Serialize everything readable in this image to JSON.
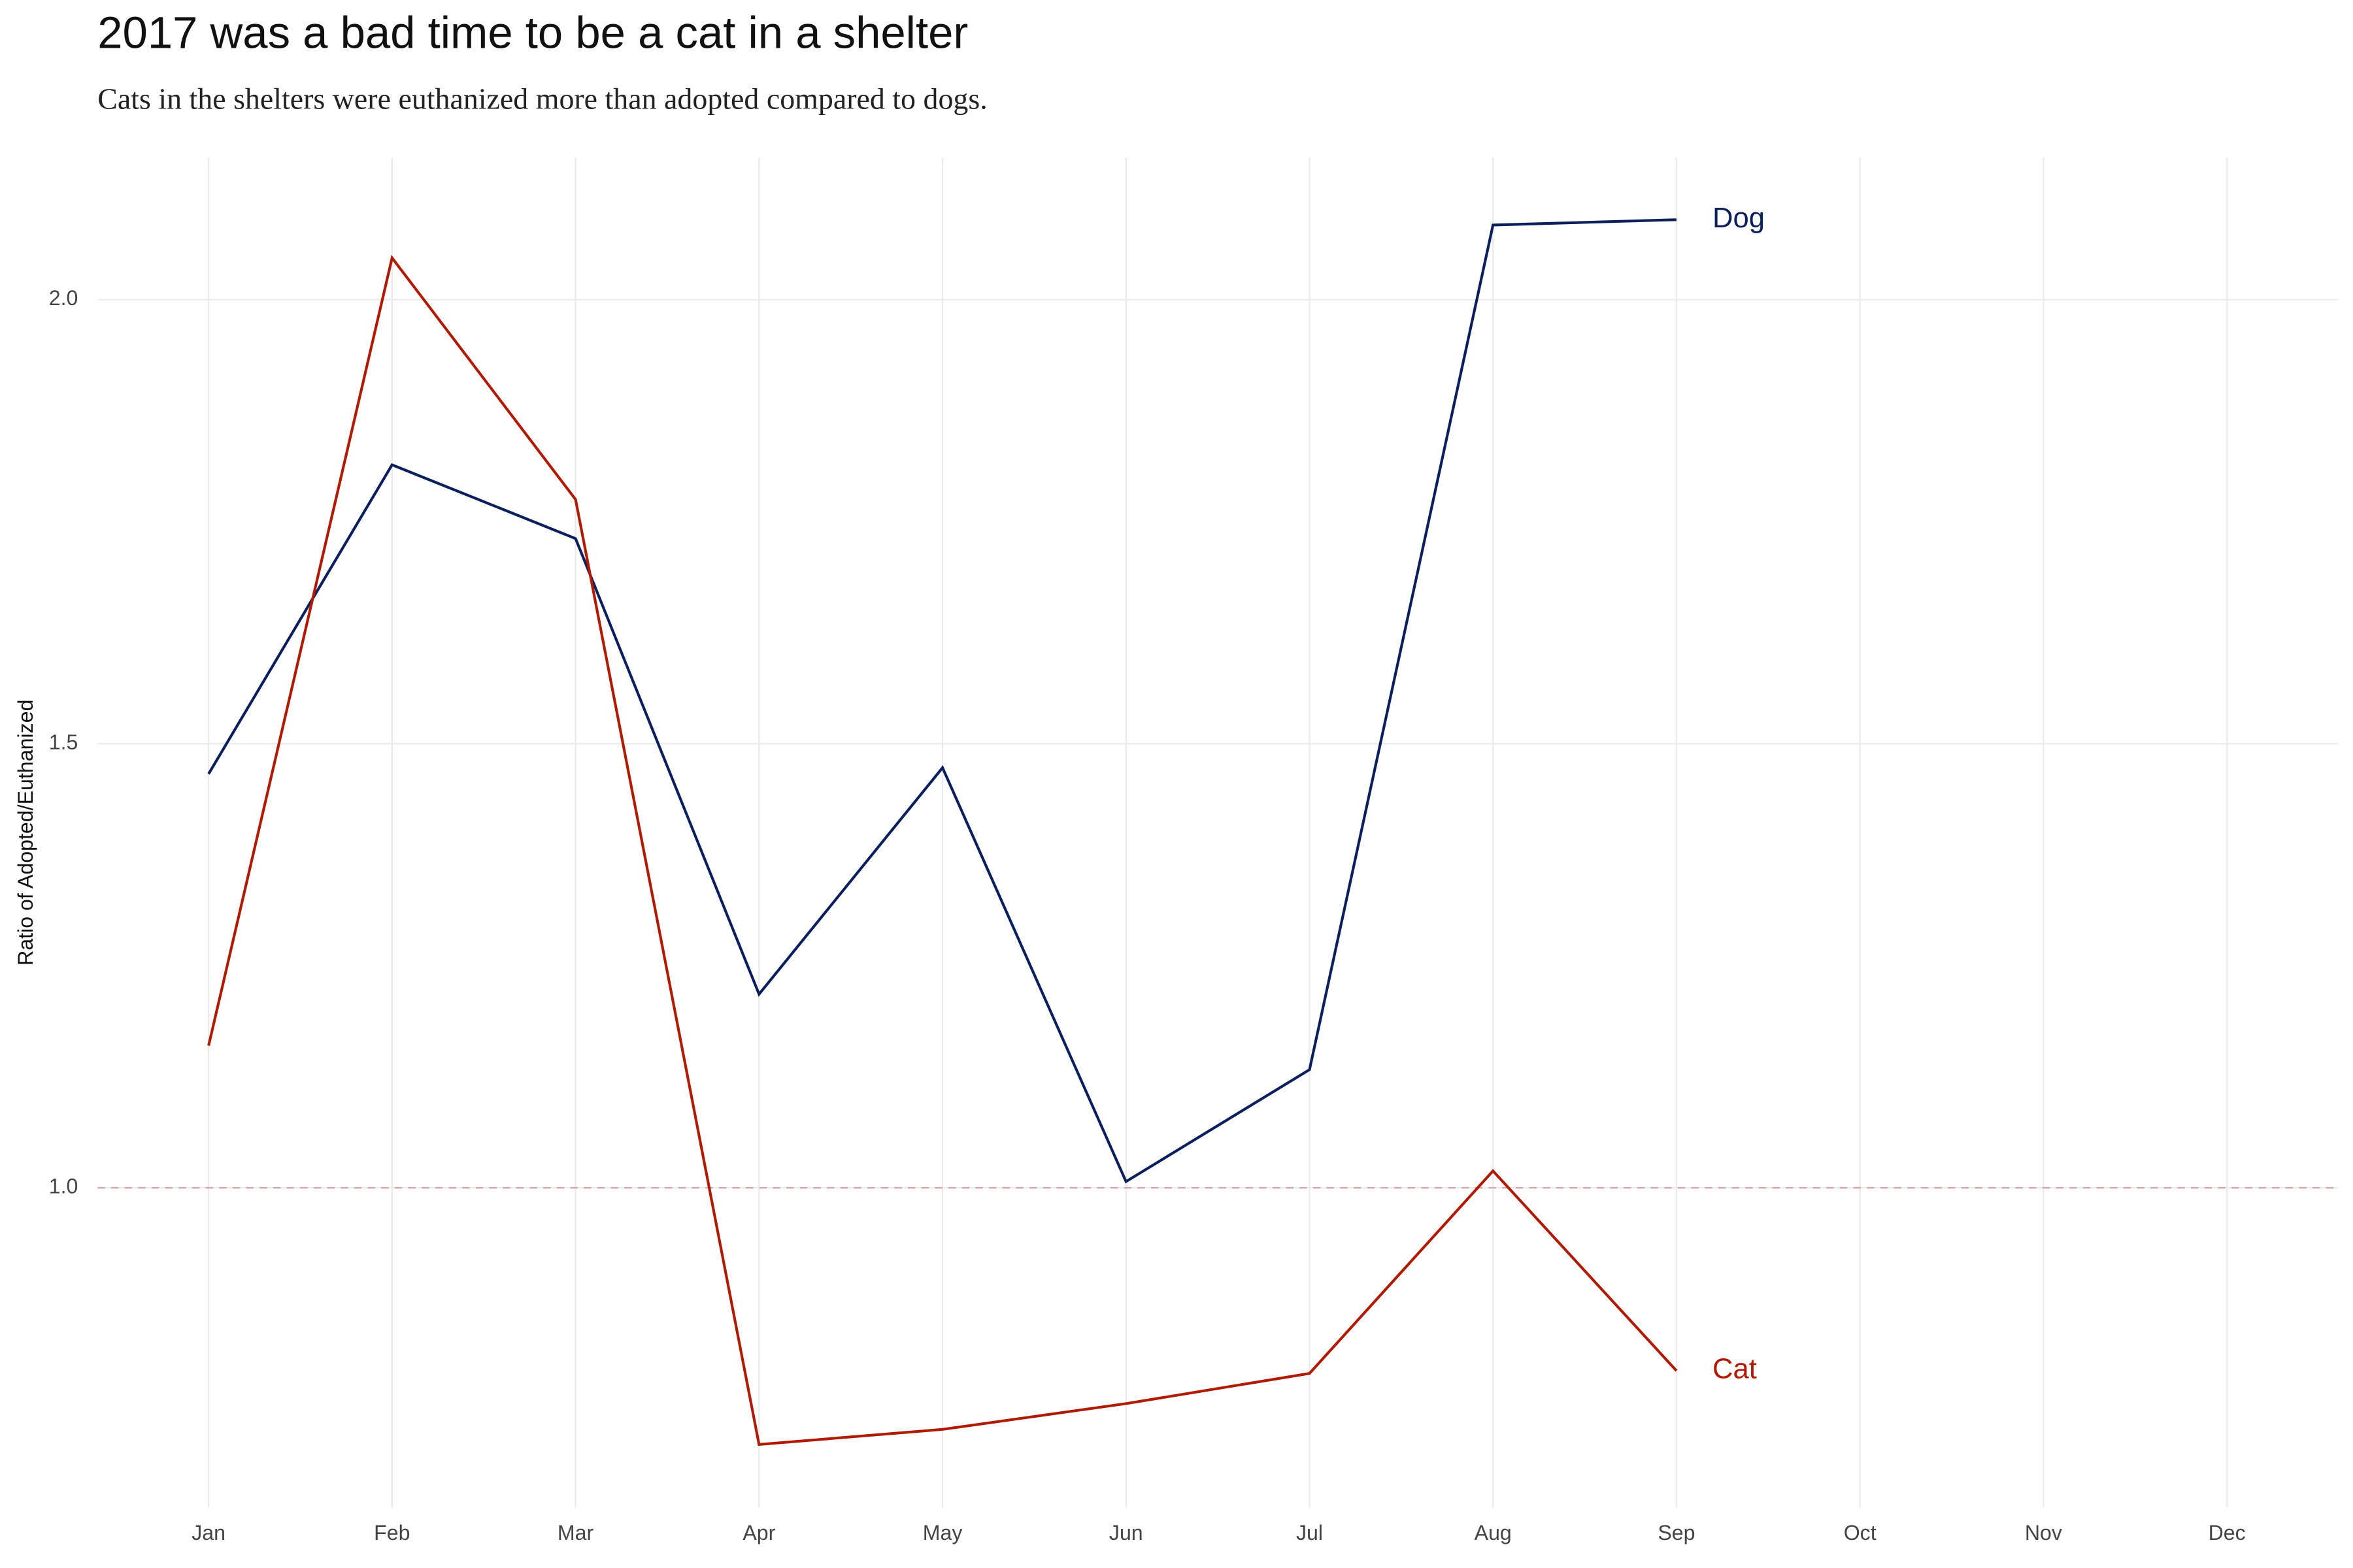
{
  "chart_data": {
    "type": "line",
    "title": "2017 was a bad time to be a cat in a shelter",
    "subtitle": "Cats in the shelters were euthanized more than adopted compared to dogs.",
    "y_label": "Ratio of Adopted/Euthanized",
    "categories": [
      "Jan",
      "Feb",
      "Mar",
      "Apr",
      "May",
      "Jun",
      "Jul",
      "Aug",
      "Sep",
      "Oct",
      "Nov",
      "Dec"
    ],
    "series": [
      {
        "name": "Dog",
        "color": "#0b1f5c",
        "values": [
          1.466,
          1.814,
          1.731,
          1.218,
          1.473,
          1.007,
          1.133,
          2.084,
          2.09,
          null,
          null,
          null
        ]
      },
      {
        "name": "Cat",
        "color": "#b01a00",
        "values": [
          1.16,
          2.047,
          1.775,
          0.711,
          0.728,
          0.757,
          0.791,
          1.019,
          0.794,
          null,
          null,
          null
        ]
      }
    ],
    "ylim": [
      0.64,
      2.16
    ],
    "yticks": [
      {
        "value": 1,
        "label": "1.0"
      },
      1.5,
      {
        "value": 2,
        "label": "2.0"
      }
    ],
    "reference_line": 1,
    "reference_color": "#d9a3a8",
    "grid": true
  }
}
